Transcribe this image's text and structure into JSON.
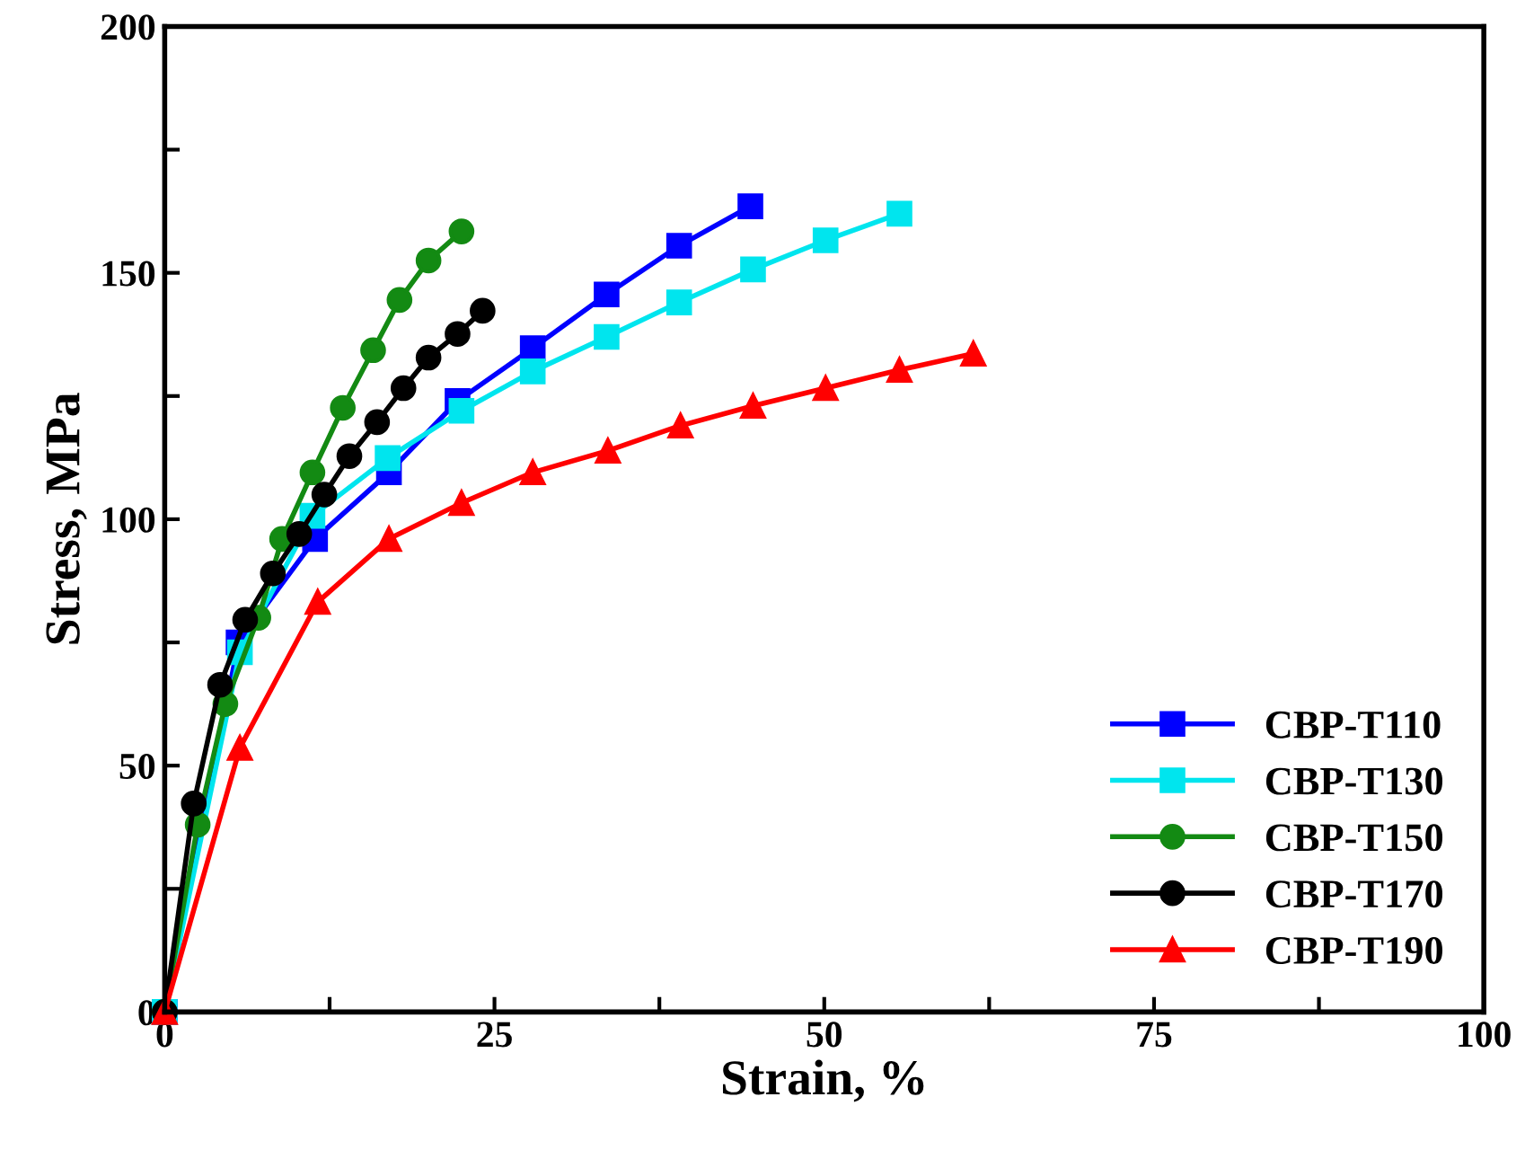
{
  "chart_data": {
    "type": "line",
    "xlabel": "Strain, %",
    "ylabel": "Stress, MPa",
    "xlim": [
      0,
      100
    ],
    "ylim": [
      0,
      200
    ],
    "xticks": [
      0,
      {
        "value": 12.5,
        "label": null
      },
      25,
      {
        "value": 37.5,
        "label": null
      },
      50,
      {
        "value": 62.5,
        "label": null
      },
      75,
      {
        "value": 87.5,
        "label": null
      },
      100
    ],
    "yticks": [
      0,
      {
        "value": 25,
        "label": null
      },
      50,
      {
        "value": 75,
        "label": null
      },
      100,
      {
        "value": 125,
        "label": null
      },
      150,
      {
        "value": 175,
        "label": null
      },
      200
    ],
    "legend": "bottom right",
    "grid": false,
    "line_style": "solid",
    "series": [
      {
        "name": "CBP-T110",
        "color": "#0000ff",
        "marker": "square",
        "x": [
          0,
          5.6,
          11.4,
          17,
          22.2,
          27.9,
          33.5,
          39,
          44.4
        ],
        "values": [
          0,
          75,
          96,
          109.5,
          124,
          134.7,
          145.6,
          155.5,
          163.5
        ]
      },
      {
        "name": "CBP-T130",
        "color": "#00e5ee",
        "marker": "square",
        "x": [
          0,
          5.7,
          11.2,
          16.9,
          22.5,
          27.9,
          33.5,
          39,
          44.6,
          50.1,
          55.7
        ],
        "values": [
          0,
          73,
          100.7,
          112.4,
          122,
          130,
          137,
          144,
          150.7,
          156.6,
          162
        ]
      },
      {
        "name": "CBP-T150",
        "color": "#138a13",
        "marker": "circle",
        "x": [
          0,
          2.5,
          4.6,
          7.1,
          8.9,
          11.2,
          13.5,
          15.8,
          17.8,
          20,
          22.5
        ],
        "values": [
          0,
          38,
          62.5,
          80,
          96,
          109.5,
          122.6,
          134.3,
          144.5,
          152.5,
          158.4
        ]
      },
      {
        "name": "CBP-T170",
        "color": "#000000",
        "marker": "circle",
        "x": [
          0,
          2.2,
          4.2,
          6.1,
          8.2,
          10.2,
          12.1,
          14,
          16.1,
          18.1,
          20,
          22.2,
          24.1
        ],
        "values": [
          0,
          42.3,
          66.4,
          79.6,
          89,
          97,
          105,
          112.8,
          119.7,
          126.6,
          132.8,
          137.6,
          142.3
        ]
      },
      {
        "name": "CBP-T190",
        "color": "#ff0000",
        "marker": "triangle",
        "x": [
          0,
          5.7,
          11.6,
          17,
          22.5,
          27.9,
          33.6,
          39.1,
          44.6,
          50.1,
          55.7,
          61.3
        ],
        "values": [
          0,
          53.6,
          83.2,
          96,
          103.3,
          109.5,
          113.9,
          119,
          123,
          126.6,
          130.3,
          133.6
        ]
      }
    ]
  }
}
